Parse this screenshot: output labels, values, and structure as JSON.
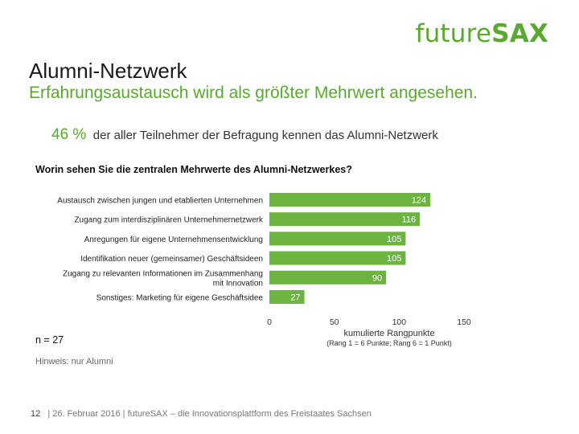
{
  "logo": {
    "part1": "future",
    "part2": "SAX"
  },
  "header": {
    "title": "Alumni-Netzwerk",
    "subtitle": "Erfahrungsaustausch wird als größter Mehrwert angesehen."
  },
  "stat": {
    "value": "46 %",
    "text": "der aller Teilnehmer der Befragung kennen das Alumni-Netzwerk"
  },
  "question": "Worin sehen Sie die zentralen Mehrwerte des Alumni-Netzwerkes?",
  "sample": "n = 27",
  "hint": "Hinweis: nur Alumni",
  "footer": {
    "page": "12",
    "text": "| 26. Februar 2016 | futureSAX – die Innovationsplattform  des Freistaates Sachsen"
  },
  "colors": {
    "accent": "#59a82f",
    "bar": "#6db33f",
    "axis": "#bfbfbf"
  },
  "chart_data": {
    "type": "bar",
    "orientation": "horizontal",
    "categories": [
      "Austausch zwischen jungen und etablierten Unternehmen",
      "Zugang zum interdisziplinären Unternehmernetzwerk",
      "Anregungen für eigene Unternehmensentwicklung",
      "Identifikation neuer (gemeinsamer) Geschäftsideen",
      "Zugang zu relevanten Informationen im Zusammenhang mit Innovation",
      "Sonstiges: Marketing für eigene Geschäftsidee"
    ],
    "category_lines": [
      [
        "Austausch zwischen jungen und etablierten Unternehmen"
      ],
      [
        "Zugang zum interdisziplinären Unternehmernetzwerk"
      ],
      [
        "Anregungen für eigene Unternehmensentwicklung"
      ],
      [
        "Identifikation neuer (gemeinsamer) Geschäftsideen"
      ],
      [
        "Zugang zu relevanten Informationen im Zusammenhang",
        "mit Innovation"
      ],
      [
        "Sonstiges: Marketing für eigene Geschäftsidee"
      ]
    ],
    "values": [
      124,
      116,
      105,
      105,
      90,
      27
    ],
    "xlim": [
      0,
      150
    ],
    "ticks": [
      0,
      50,
      100,
      150
    ],
    "xlabel": "kumulierte Rangpunkte",
    "xlabel_note": "(Rang 1 = 6 Punkte; Rang 6 = 1 Punkt)",
    "grid": false
  }
}
